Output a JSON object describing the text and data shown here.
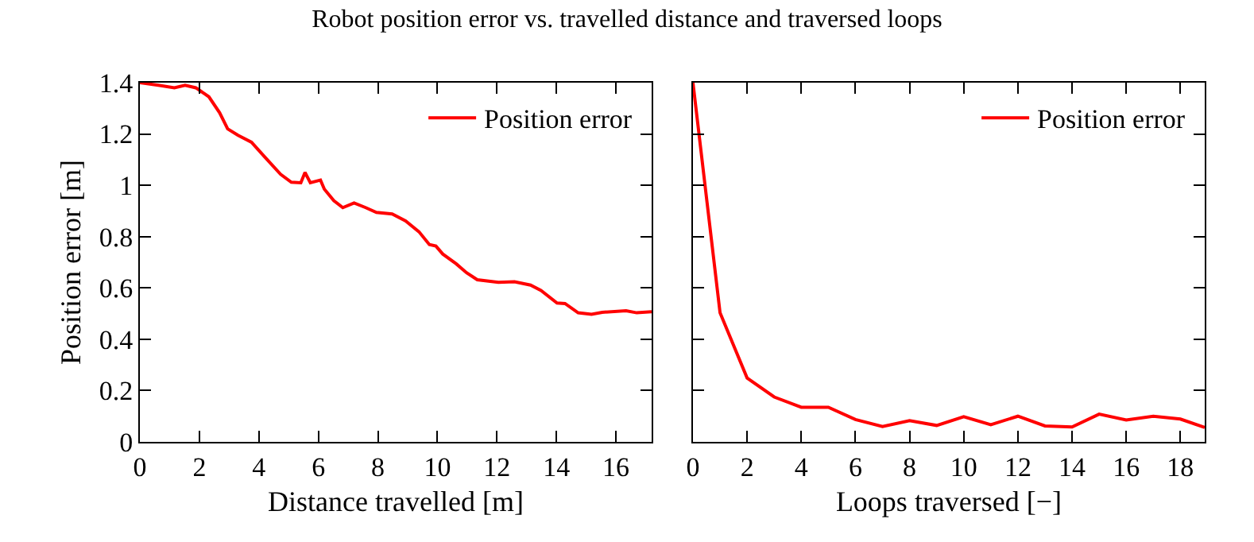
{
  "chart_data": [
    {
      "type": "line",
      "title": "Robot position error vs. travelled distance and traversed loops",
      "xlabel": "Distance travelled [m]",
      "ylabel": "Position error [m]",
      "x": [
        0,
        0.62,
        1.16,
        1.52,
        1.88,
        2.32,
        2.68,
        2.95,
        3.3,
        3.75,
        4.2,
        4.73,
        5.09,
        5.41,
        5.55,
        5.73,
        6.07,
        6.2,
        6.52,
        6.82,
        7.2,
        7.59,
        7.95,
        8.48,
        8.93,
        9.38,
        9.73,
        9.95,
        10.18,
        10.63,
        10.98,
        11.34,
        12.05,
        12.59,
        13.13,
        13.48,
        14.02,
        14.29,
        14.73,
        15.18,
        15.54,
        16.34,
        16.7,
        17.2
      ],
      "series": [
        {
          "name": "Position error",
          "color": "#ff0000",
          "values": [
            1.4,
            1.39,
            1.38,
            1.39,
            1.38,
            1.345,
            1.283,
            1.22,
            1.195,
            1.168,
            1.11,
            1.043,
            1.012,
            1.01,
            1.05,
            1.01,
            1.02,
            0.985,
            0.94,
            0.913,
            0.931,
            0.913,
            0.894,
            0.888,
            0.861,
            0.819,
            0.769,
            0.763,
            0.732,
            0.694,
            0.659,
            0.632,
            0.622,
            0.624,
            0.611,
            0.59,
            0.541,
            0.539,
            0.503,
            0.497,
            0.505,
            0.511,
            0.503,
            0.507
          ]
        }
      ],
      "xlim": [
        0,
        17.2
      ],
      "xticks": [
        0,
        2,
        4,
        6,
        8,
        10,
        12,
        14,
        16
      ],
      "ylim": [
        0,
        1.4
      ],
      "yticks": [
        0,
        0.2,
        0.4,
        0.6,
        0.8,
        1,
        1.2,
        1.4
      ],
      "grid": false,
      "legend": "top right",
      "marker": "none",
      "line_style": "solid"
    },
    {
      "type": "line",
      "xlabel": "Loops traversed [−]",
      "x": [
        0,
        1,
        2,
        3,
        4,
        5,
        6,
        7,
        8,
        9,
        10,
        11,
        12,
        13,
        14,
        15,
        16,
        17,
        18,
        18.9
      ],
      "series": [
        {
          "name": "Position error",
          "color": "#ff0000",
          "values": [
            1.4,
            0.503,
            0.249,
            0.175,
            0.135,
            0.135,
            0.087,
            0.06,
            0.083,
            0.064,
            0.098,
            0.067,
            0.1,
            0.062,
            0.058,
            0.108,
            0.085,
            0.1,
            0.089,
            0.056
          ]
        }
      ],
      "xlim": [
        0,
        18.9
      ],
      "xticks": [
        0,
        2,
        4,
        6,
        8,
        10,
        12,
        14,
        16,
        18
      ],
      "ylim": [
        0,
        1.4
      ],
      "yticks": [
        0,
        0.2,
        0.4,
        0.6,
        0.8,
        1,
        1.2,
        1.4
      ],
      "tick_labels": "x",
      "grid": false,
      "legend": "top right",
      "marker": "none",
      "line_style": "solid"
    }
  ]
}
